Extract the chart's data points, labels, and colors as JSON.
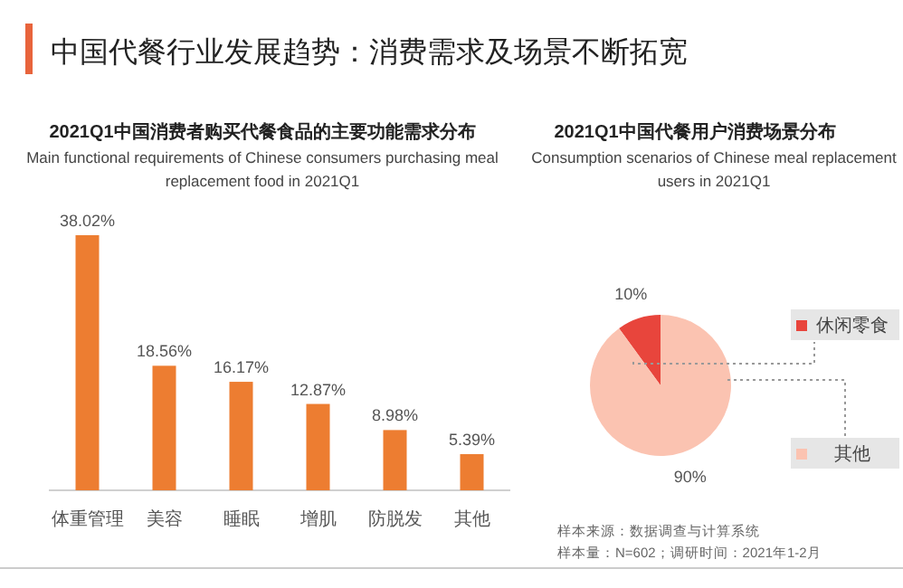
{
  "chart_data": [
    {
      "type": "bar",
      "title": "2021Q1中国消费者购买代餐食品的主要功能需求分布",
      "subtitle": "Main functional requirements of Chinese consumers purchasing meal replacement food in 2021Q1",
      "annotations": [
        "中国代餐行业发展趋势：消费需求及场景不断拓宽"
      ],
      "categories": [
        "体重管理",
        "美容",
        "睡眠",
        "增肌",
        "防脱发",
        "其他"
      ],
      "values": [
        38.02,
        18.56,
        16.17,
        12.87,
        8.98,
        5.39
      ],
      "value_labels": [
        "38.02%",
        "18.56%",
        "16.17%",
        "12.87%",
        "8.98%",
        "5.39%"
      ],
      "color": "#ed7d31"
    },
    {
      "type": "pie",
      "title": "2021Q1中国代餐用户消费场景分布",
      "subtitle": "Consumption scenarios of Chinese meal replacement users in  2021Q1",
      "annotations": [
        "样本来源：数据调查与计算系统",
        "样本量：N=602；调研时间：2021年1-2月"
      ],
      "categories": [
        "休闲零食",
        "其他"
      ],
      "values": [
        10,
        90
      ],
      "value_labels": [
        "10%",
        "90%"
      ],
      "colors": [
        "#e8453c",
        "#fbc3b1"
      ],
      "legend": "right"
    }
  ]
}
